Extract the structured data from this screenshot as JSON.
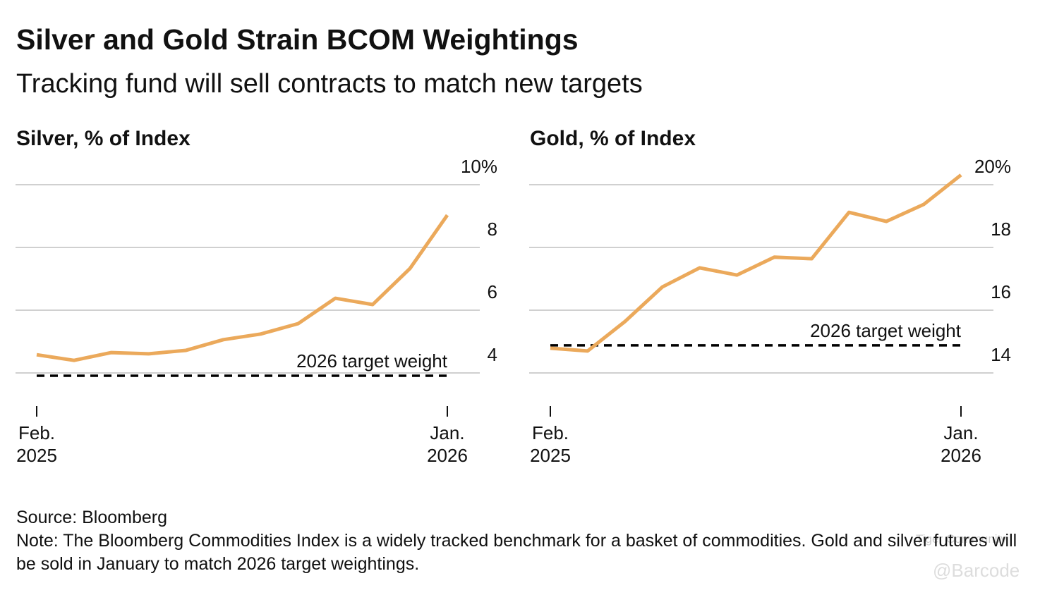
{
  "title": "Silver and Gold Strain BCOM Weightings",
  "subtitle": "Tracking fund will sell contracts to match new targets",
  "source": "Source: Bloomberg",
  "note": "Note: The Bloomberg Commodities Index is a widely tracked benchmark for a basket of commodities. Gold and silver futures will be sold in January to match 2026 target weightings.",
  "watermark": [
    "Tiger Community",
    "@Barcode"
  ],
  "chart_data": [
    {
      "type": "line",
      "title": "Silver, % of Index",
      "categories": [
        "Feb. 2025",
        null,
        null,
        null,
        null,
        null,
        null,
        null,
        null,
        null,
        null,
        "Jan. 2026"
      ],
      "series": [
        {
          "name": "Silver",
          "color": "#eba95b",
          "values": [
            4.58,
            4.4,
            4.65,
            4.61,
            4.72,
            5.06,
            5.24,
            5.57,
            6.38,
            6.18,
            7.33,
            9.03
          ]
        }
      ],
      "target": {
        "label": "2026 target weight",
        "value": 3.91,
        "color": "#000000"
      },
      "ylim": [
        3,
        10.5
      ],
      "yticks": [
        4,
        6,
        8,
        {
          "value": 10,
          "label": "10%"
        }
      ],
      "grid": true
    },
    {
      "type": "line",
      "title": "Gold, % of Index",
      "categories": [
        "Feb. 2025",
        null,
        null,
        null,
        null,
        null,
        null,
        null,
        null,
        null,
        null,
        "Jan. 2026"
      ],
      "series": [
        {
          "name": "Gold",
          "color": "#eba95b",
          "values": [
            14.79,
            14.7,
            15.64,
            16.74,
            17.35,
            17.12,
            17.69,
            17.64,
            19.12,
            18.83,
            19.37,
            20.31
          ]
        }
      ],
      "target": {
        "label": "2026 target weight",
        "value": 14.88,
        "color": "#000000"
      },
      "ylim": [
        13,
        20.5
      ],
      "yticks": [
        14,
        16,
        18,
        {
          "value": 20,
          "label": "20%"
        }
      ],
      "grid": true
    }
  ]
}
